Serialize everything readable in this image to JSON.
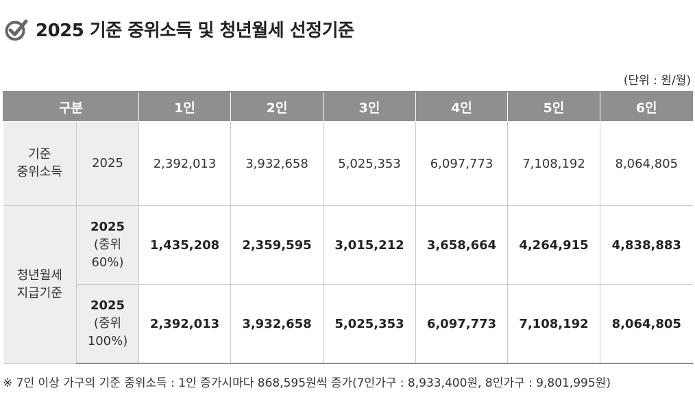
{
  "title": "2025 기준 중위소득 및 청년월세 선정기준",
  "unit": "(단위 : 원/월)",
  "header": {
    "category": "구분",
    "columns": [
      "1인",
      "2인",
      "3인",
      "4인",
      "5인",
      "6인"
    ]
  },
  "rows": {
    "median": {
      "category": "기준\n중위소득",
      "sub": "2025",
      "values": [
        "2,392,013",
        "3,932,658",
        "5,025,353",
        "6,097,773",
        "7,108,192",
        "8,064,805"
      ]
    },
    "group_label": "청년월세\n지급기준",
    "rent60": {
      "sub_year": "2025",
      "sub_desc": "(중위\n60%)",
      "values": [
        "1,435,208",
        "2,359,595",
        "3,015,212",
        "3,658,664",
        "4,264,915",
        "4,838,883"
      ]
    },
    "rent100": {
      "sub_year": "2025",
      "sub_desc": "(중위\n100%)",
      "values": [
        "2,392,013",
        "3,932,658",
        "5,025,353",
        "6,097,773",
        "7,108,192",
        "8,064,805"
      ]
    }
  },
  "footnote": "※ 7인 이상 가구의 기준 중위소득 : 1인 증가시마다 868,595원씩 증가(7인가구 : 8,933,400원, 8인가구 : 9,801,995원)",
  "colors": {
    "header_bg": "#8f8f8f",
    "label_bg": "#eeeeee",
    "check_icon": "#666666"
  }
}
